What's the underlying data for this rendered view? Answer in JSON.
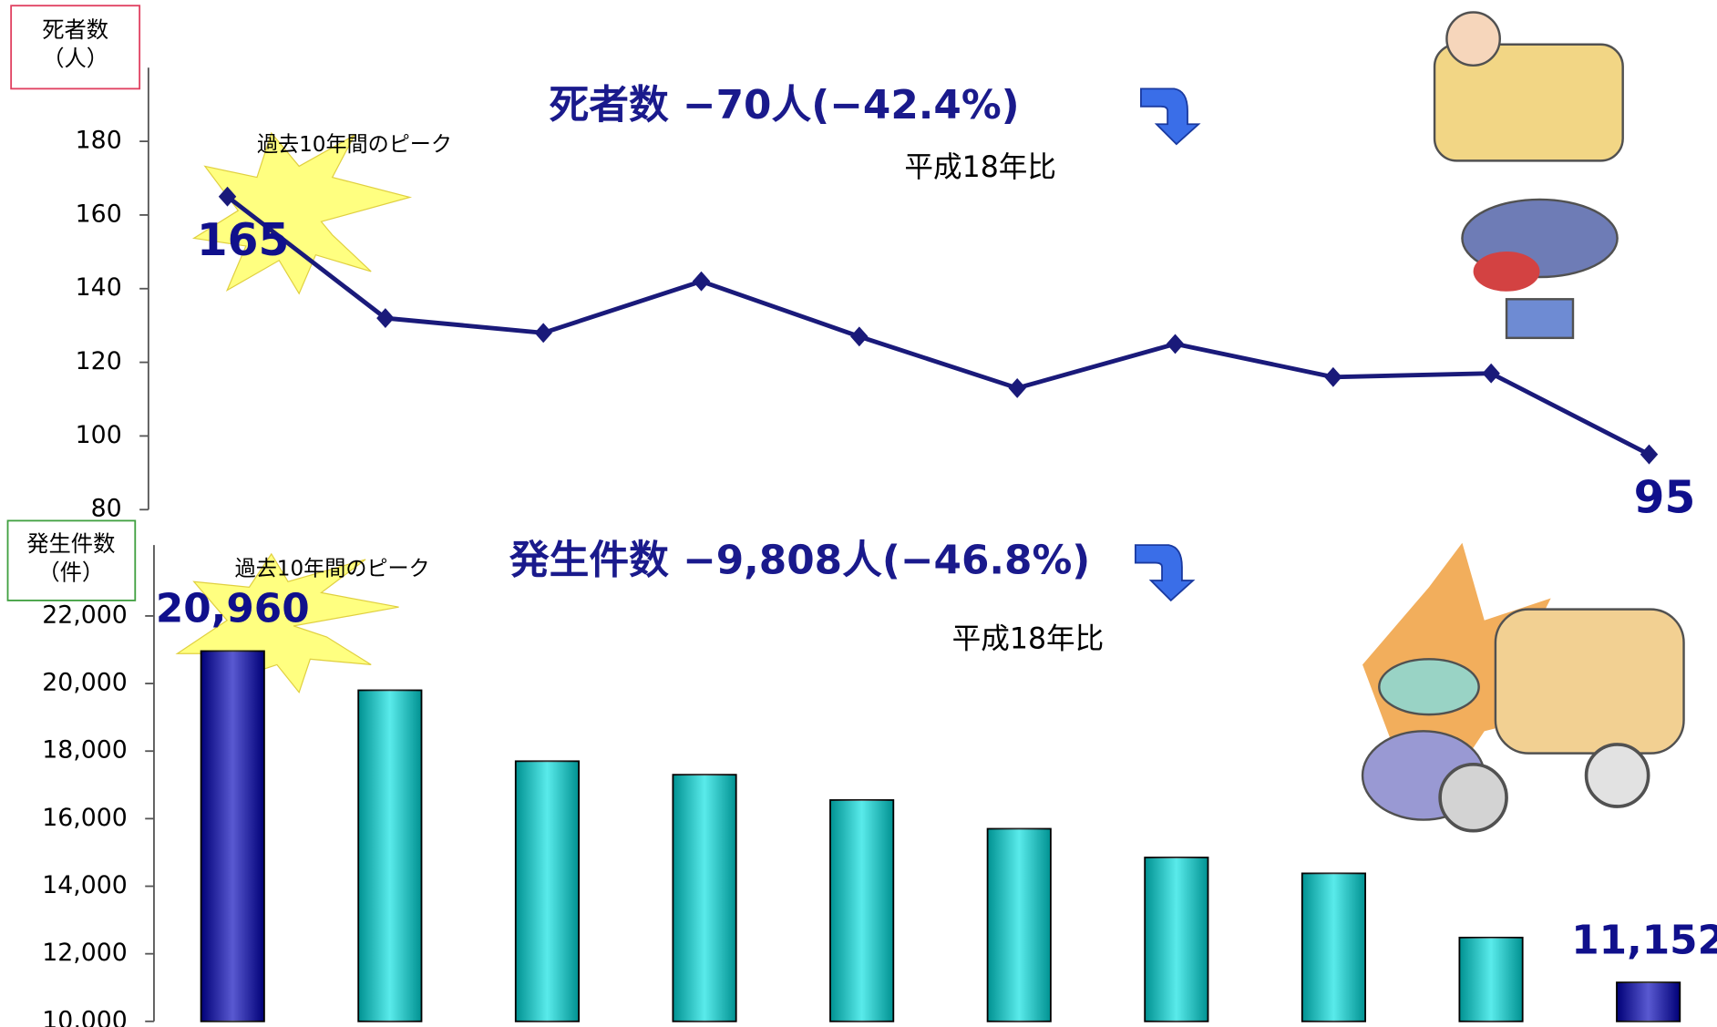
{
  "chart_data": [
    {
      "type": "line",
      "title": "死者数 −70人(−42.4%)",
      "subtitle": "平成18年比",
      "annotation": "過去10年間のピーク",
      "y_label": [
        "死者数",
        "（人）"
      ],
      "categories": [
        null,
        null,
        null,
        null,
        null,
        null,
        null,
        null,
        null,
        null
      ],
      "values": [
        165,
        132,
        128,
        142,
        127,
        113,
        125,
        116,
        117,
        95
      ],
      "value_labels": [
        "165",
        null,
        null,
        null,
        null,
        null,
        null,
        null,
        null,
        "95"
      ],
      "color": "#1a1a7a",
      "ylim": [
        80,
        200
      ],
      "yticks": [
        80,
        100,
        120,
        140,
        160,
        180
      ]
    },
    {
      "type": "bar",
      "title": "発生件数 −9,808人(−46.8%)",
      "subtitle": "平成18年比",
      "annotation": "過去10年間のピーク",
      "y_label": [
        "発生件数",
        "（件）"
      ],
      "categories": [
        null,
        null,
        null,
        null,
        null,
        null,
        null,
        null,
        null,
        null
      ],
      "values": [
        20960,
        19800,
        17700,
        17300,
        16550,
        15700,
        14850,
        14380,
        12480,
        11152
      ],
      "value_labels": [
        "20,960",
        null,
        null,
        null,
        null,
        null,
        null,
        null,
        null,
        "11,152"
      ],
      "colors": [
        "#0000b8",
        "#00e0e0",
        "#00e0e0",
        "#00e0e0",
        "#00e0e0",
        "#00e0e0",
        "#00e0e0",
        "#00e0e0",
        "#00e0e0",
        "#0000b8"
      ],
      "ylim": [
        10000,
        24000
      ],
      "yticks": [
        {
          "value": 10000,
          "label": "10,000"
        },
        {
          "value": 12000,
          "label": "12,000"
        },
        {
          "value": 14000,
          "label": "14,000"
        },
        {
          "value": 16000,
          "label": "16,000"
        },
        {
          "value": 18000,
          "label": "18,000"
        },
        {
          "value": 20000,
          "label": "20,000"
        },
        {
          "value": 22000,
          "label": "22,000"
        }
      ]
    }
  ]
}
